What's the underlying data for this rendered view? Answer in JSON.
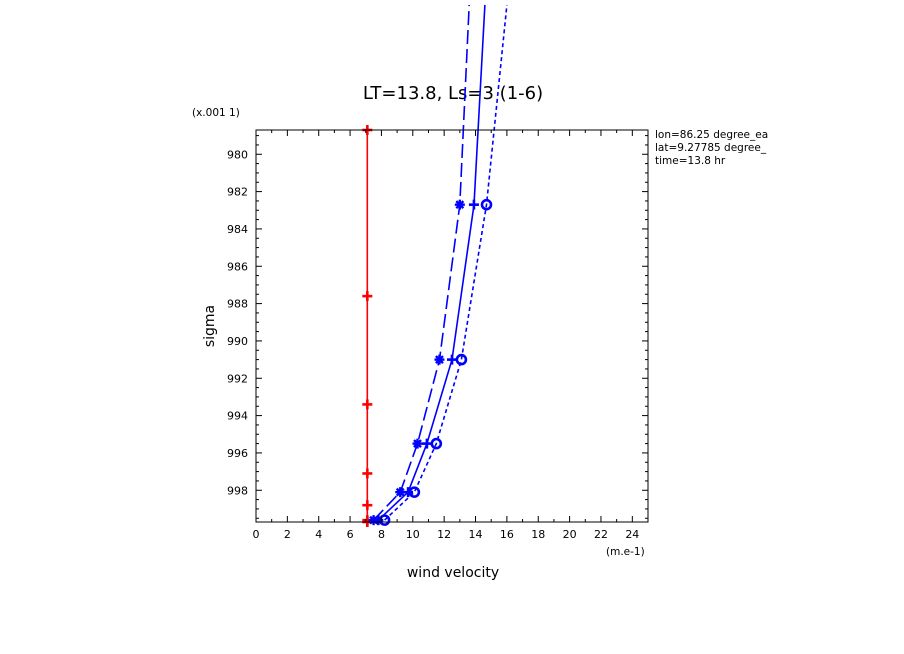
{
  "chart_data": {
    "type": "line",
    "title": "LT=13.8, Ls=3 (1-6)",
    "xlabel": "wind velocity",
    "ylabel": "sigma",
    "x_units": "(m.e-1)",
    "y_units": "(x.001 1)",
    "xlim": [
      0,
      25
    ],
    "ylim": [
      978.7,
      999.7
    ],
    "y_inverted": true,
    "x_ticks": [
      "0",
      "2",
      "4",
      "6",
      "8",
      "10",
      "12",
      "14",
      "16",
      "18",
      "20",
      "22",
      "24"
    ],
    "y_ticks": [
      "980",
      "982",
      "984",
      "986",
      "988",
      "990",
      "992",
      "994",
      "996",
      "998"
    ],
    "info": [
      "lon=86.25 degree_ea",
      "lat=9.27785 degree_",
      "time=13.8 hr"
    ],
    "grid": false,
    "series": [
      {
        "style": "solid",
        "color": "#ff0000",
        "marker": "plus",
        "x": [
          7.1,
          7.1,
          7.1,
          7.1,
          7.1,
          7.1,
          7.1
        ],
        "y": [
          978.7,
          987.6,
          993.4,
          997.1,
          998.8,
          999.6,
          999.7
        ]
      },
      {
        "style": "dash-long",
        "color": "#0000ff",
        "marker": "asterisk",
        "x": [
          7.5,
          9.2,
          10.3,
          11.7,
          13.0,
          13.6
        ],
        "y": [
          999.6,
          998.1,
          995.5,
          991.0,
          982.7,
          972.0
        ]
      },
      {
        "style": "solid",
        "color": "#0000ff",
        "marker": "plus",
        "x": [
          7.8,
          9.7,
          10.9,
          12.5,
          13.9,
          14.6
        ],
        "y": [
          999.6,
          998.1,
          995.5,
          991.0,
          982.7,
          972.0
        ]
      },
      {
        "style": "dotted",
        "color": "#0000ff",
        "marker": "circle",
        "x": [
          8.2,
          10.1,
          11.5,
          13.1,
          14.7,
          16.0
        ],
        "y": [
          999.6,
          998.1,
          995.5,
          991.0,
          982.7,
          972.0
        ]
      }
    ]
  }
}
